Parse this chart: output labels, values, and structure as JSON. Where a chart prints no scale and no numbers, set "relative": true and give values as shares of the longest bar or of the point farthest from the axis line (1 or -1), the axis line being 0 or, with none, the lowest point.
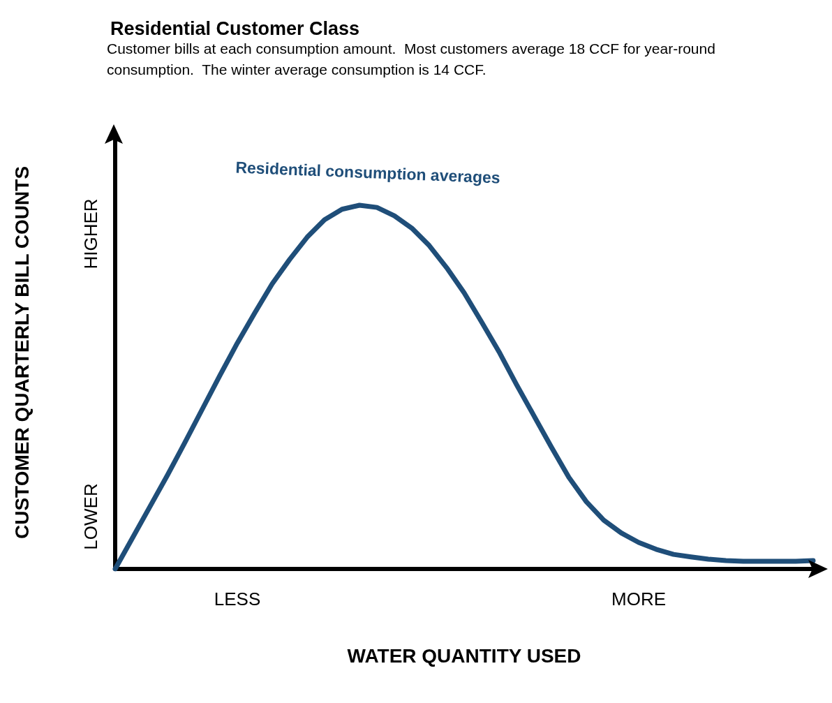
{
  "chart_data": {
    "type": "line",
    "relative": true,
    "title": "Residential Customer Class",
    "subtitle": "Customer bills at each consumption amount.  Most customers average 18 CCF for year-round consumption.  The winter average consumption is 14 CCF.",
    "xlabel": "WATER QUANTITY USED",
    "ylabel": "CUSTOMER QUARTERLY BILL COUNTS",
    "categories": [
      null,
      null,
      null,
      null,
      null,
      null,
      null,
      "LESS",
      null,
      null,
      null,
      null,
      null,
      null,
      null,
      null,
      null,
      null,
      null,
      null,
      null,
      null,
      null,
      null,
      null,
      null,
      null,
      null,
      null,
      null,
      "MORE",
      null,
      null,
      null,
      null,
      null,
      null,
      null,
      null,
      null,
      null
    ],
    "series": [
      {
        "color": "#1f4e79",
        "values": [
          0,
          0.086,
          0.172,
          0.258,
          0.348,
          0.44,
          0.532,
          0.621,
          0.704,
          0.784,
          0.851,
          0.912,
          0.96,
          0.989,
          1,
          0.994,
          0.971,
          0.937,
          0.889,
          0.828,
          0.759,
          0.679,
          0.597,
          0.507,
          0.421,
          0.335,
          0.252,
          0.185,
          0.134,
          0.099,
          0.073,
          0.054,
          0.04,
          0.033,
          0.027,
          0.023,
          0.021,
          0.021,
          0.021,
          0.021,
          0.023
        ]
      }
    ],
    "annotations": [
      "Residential consumption averages",
      "LOWER",
      "HIGHER"
    ],
    "marker": "none",
    "line_style": "solid"
  }
}
